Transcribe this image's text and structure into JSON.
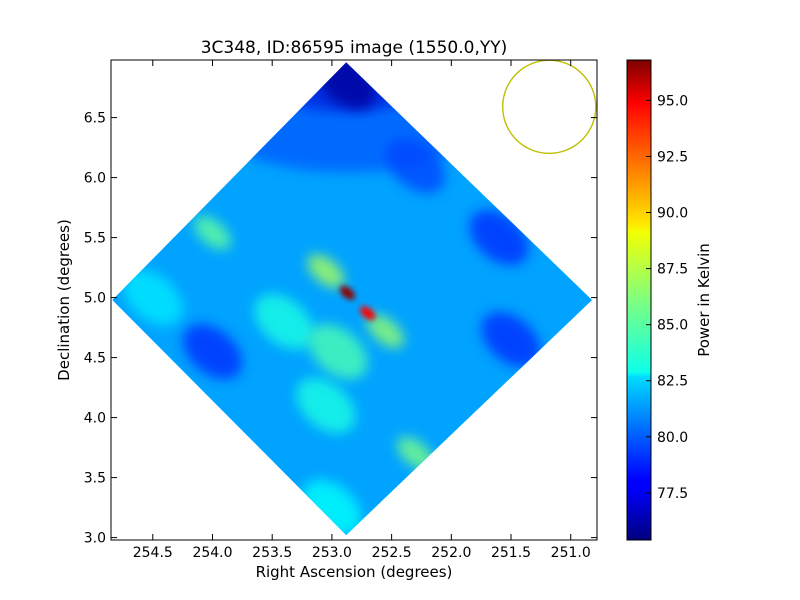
{
  "chart_data": {
    "type": "heatmap",
    "title": "3C348, ID:86595 image (1550.0,YY)",
    "xlabel": "Right Ascension (degrees)",
    "ylabel": "Declination (degrees)",
    "xlim": [
      254.85,
      250.78
    ],
    "ylim": [
      2.98,
      6.98
    ],
    "x_ticks": [
      254.5,
      254.0,
      253.5,
      253.0,
      252.5,
      252.0,
      251.5,
      251.0
    ],
    "x_tick_labels": [
      "254.5",
      "254.0",
      "253.5",
      "253.0",
      "252.5",
      "252.0",
      "251.5",
      "251.0"
    ],
    "y_ticks": [
      3.0,
      3.5,
      4.0,
      4.5,
      5.0,
      5.5,
      6.0,
      6.5
    ],
    "y_tick_labels": [
      "3.0",
      "3.5",
      "4.0",
      "4.5",
      "5.0",
      "5.5",
      "6.0",
      "6.5"
    ],
    "colorbar": {
      "label": "Power in Kelvin",
      "range": [
        75.4,
        96.8
      ],
      "ticks": [
        77.5,
        80.0,
        82.5,
        85.0,
        87.5,
        90.0,
        92.5,
        95.0
      ],
      "tick_labels": [
        "77.5",
        "80.0",
        "82.5",
        "85.0",
        "87.5",
        "90.0",
        "92.5",
        "95.0"
      ],
      "colormap": "jet"
    },
    "footprint": {
      "shape": "diamond",
      "vertices": [
        [
          252.88,
          6.96
        ],
        [
          250.82,
          4.98
        ],
        [
          252.88,
          3.02
        ],
        [
          254.84,
          4.98
        ]
      ],
      "baseline_value": 81.5,
      "top_corner_value": 76.5
    },
    "features": [
      {
        "ra": 252.87,
        "dec": 5.04,
        "value": 96.5
      },
      {
        "ra": 252.7,
        "dec": 4.87,
        "value": 94.0
      },
      {
        "ra": 253.05,
        "dec": 5.22,
        "value": 87.0
      },
      {
        "ra": 252.55,
        "dec": 4.72,
        "value": 86.5
      },
      {
        "ra": 252.95,
        "dec": 4.55,
        "value": 85.0
      },
      {
        "ra": 253.05,
        "dec": 4.1,
        "value": 84.0
      },
      {
        "ra": 252.3,
        "dec": 3.7,
        "value": 86.0
      },
      {
        "ra": 254.0,
        "dec": 5.54,
        "value": 85.5
      },
      {
        "ra": 254.5,
        "dec": 5.0,
        "value": 83.0
      },
      {
        "ra": 253.4,
        "dec": 4.8,
        "value": 84.0
      },
      {
        "ra": 253.0,
        "dec": 3.25,
        "value": 83.5
      },
      {
        "ra": 252.88,
        "dec": 6.8,
        "value": 76.0
      },
      {
        "ra": 254.0,
        "dec": 4.55,
        "value": 79.0
      },
      {
        "ra": 251.5,
        "dec": 4.65,
        "value": 79.0
      },
      {
        "ra": 251.6,
        "dec": 5.5,
        "value": 79.0
      },
      {
        "ra": 252.3,
        "dec": 6.1,
        "value": 79.5
      }
    ],
    "beam": {
      "ra": 251.18,
      "dec": 6.59,
      "radius_ra": 0.39,
      "color": "#bfbf00"
    },
    "grid": false,
    "legend": "none",
    "colors": {
      "axes": "#000000",
      "beam": "#bfbf00"
    }
  }
}
